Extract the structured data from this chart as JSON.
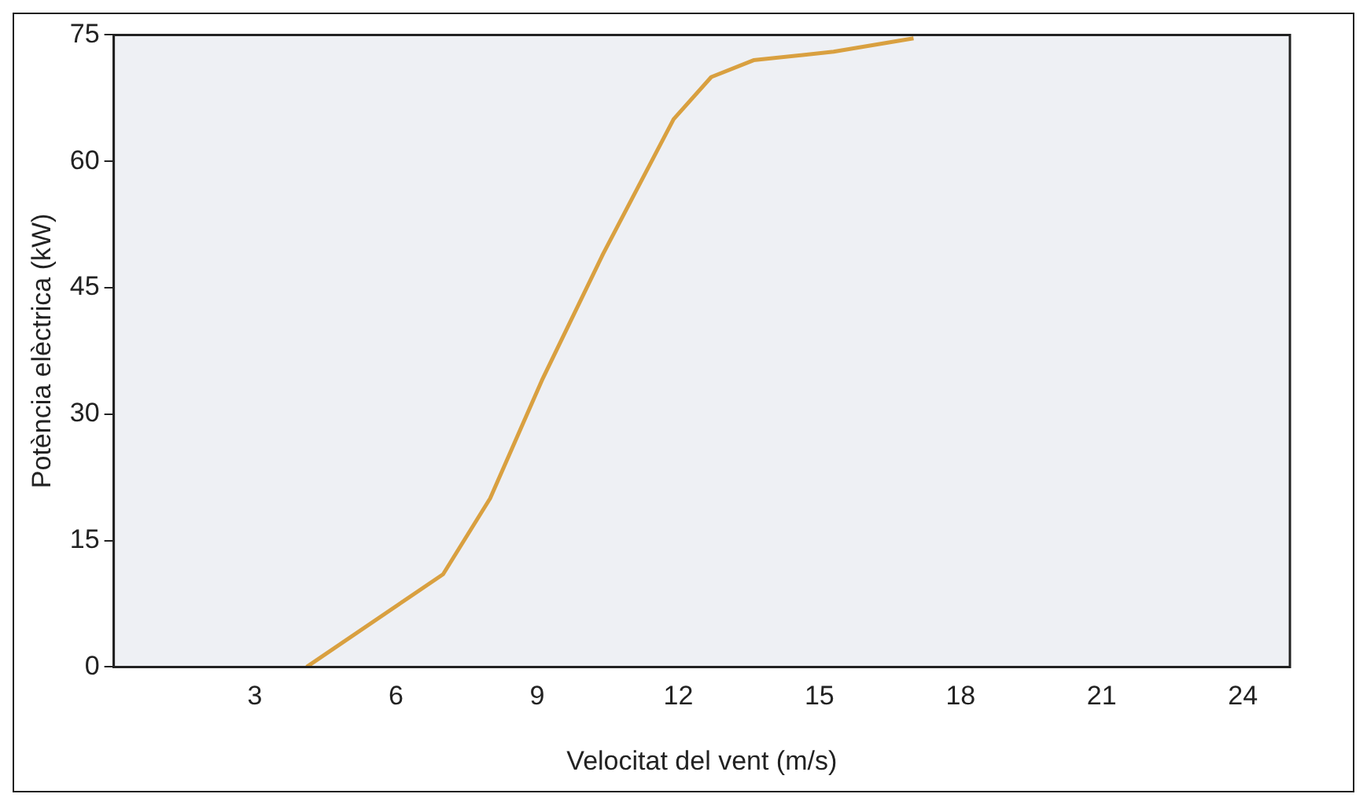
{
  "chart_data": {
    "type": "line",
    "xlabel": "Velocitat del vent (m/s)",
    "ylabel": "Potència elèctrica (kW)",
    "x": [
      4.1,
      7.0,
      8.0,
      9.1,
      10.4,
      11.9,
      12.7,
      13.6,
      15.3,
      17.0
    ],
    "series": [
      {
        "color": "#d9a040",
        "values": [
          0,
          11,
          20,
          34,
          49,
          65,
          70,
          72,
          73,
          74.6
        ]
      }
    ],
    "xlim": [
      0,
      25
    ],
    "xticks": [
      3,
      6,
      9,
      12,
      15,
      18,
      21,
      24
    ],
    "ylim": [
      0,
      75
    ],
    "yticks": [
      0,
      15,
      30,
      45,
      60,
      75
    ],
    "grid": false,
    "legend": false,
    "marker": "none",
    "line_style": "solid"
  }
}
